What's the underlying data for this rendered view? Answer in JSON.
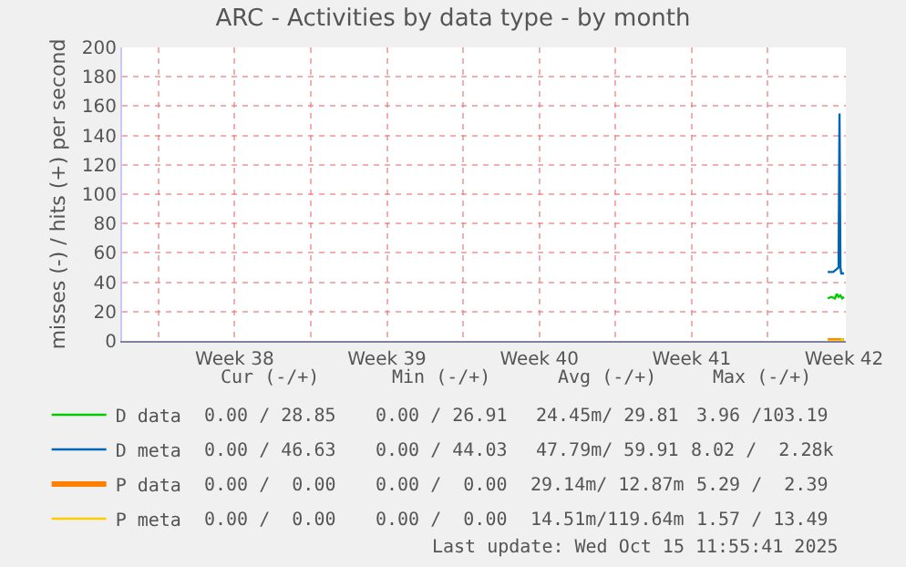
{
  "chart_data": {
    "type": "line",
    "title": "ARC - Activities by data type - by month",
    "ylabel": "misses (-) / hits (+) per second",
    "xlim": [
      "2025-09-13T08:00",
      "2025-10-16T14:00"
    ],
    "xticks": [
      {
        "value": "2025-09-15",
        "label": null
      },
      {
        "value": "2025-09-18T12:00",
        "label": "Week 38"
      },
      {
        "value": "2025-09-22",
        "label": null
      },
      {
        "value": "2025-09-25T12:00",
        "label": "Week 39"
      },
      {
        "value": "2025-09-29",
        "label": null
      },
      {
        "value": "2025-10-02T12:00",
        "label": "Week 40"
      },
      {
        "value": "2025-10-06",
        "label": null
      },
      {
        "value": "2025-10-09T12:00",
        "label": "Week 41"
      },
      {
        "value": "2025-10-13",
        "label": null
      },
      {
        "value": "2025-10-16T12:00",
        "label": "Week 42"
      }
    ],
    "ylim": [
      0,
      200
    ],
    "yticks": [
      0,
      20,
      40,
      60,
      80,
      100,
      120,
      140,
      160,
      180,
      200
    ],
    "grid": true,
    "legend": "bottom left",
    "series": [
      {
        "name": "D data",
        "color": "#00cc00",
        "x": [
          "2025-10-15T18:00",
          "2025-10-15T22:00",
          "2025-10-16T02:00",
          "2025-10-16T04:00",
          "2025-10-16T06:00",
          "2025-10-16T08:00",
          "2025-10-16T10:00",
          "2025-10-16T12:00"
        ],
        "values": [
          29,
          30,
          29,
          32,
          30,
          31,
          29,
          30
        ]
      },
      {
        "name": "D meta",
        "color": "#0066b3",
        "x": [
          "2025-10-15T18:00",
          "2025-10-16T00:00",
          "2025-10-16T04:00",
          "2025-10-16T06:00",
          "2025-10-16T07:00",
          "2025-10-16T08:00",
          "2025-10-16T09:00",
          "2025-10-16T12:00"
        ],
        "values": [
          47,
          47,
          49,
          50,
          155,
          50,
          46,
          46
        ]
      },
      {
        "name": "P data",
        "color": "#ff8000",
        "x": [
          "2025-10-15T18:00",
          "2025-10-16T12:00"
        ],
        "values": [
          0,
          0
        ]
      },
      {
        "name": "P meta",
        "color": "#ffcc00",
        "x": [
          "2025-10-15T18:00",
          "2025-10-16T08:00",
          "2025-10-16T10:00",
          "2025-10-16T12:00"
        ],
        "values": [
          0,
          0,
          1,
          0
        ]
      }
    ],
    "annotations": [
      "Cur (-/+)",
      "Min (-/+)",
      "Avg (-/+)",
      "Max (-/+)",
      "0.00 / 28.85",
      "0.00 / 26.91",
      "24.45m/ 29.81",
      "3.96 /103.19",
      "0.00 / 46.63",
      "0.00 / 44.03",
      "47.79m/ 59.91",
      "8.02 /  2.28k",
      "0.00 /  0.00",
      "0.00 /  0.00",
      "29.14m/ 12.87m",
      "5.29 /  2.39",
      "0.00 /  0.00",
      "0.00 /  0.00",
      "14.51m/119.64m",
      "1.57 / 13.49",
      "Last update: Wed Oct 15 11:55:41 2025"
    ]
  }
}
